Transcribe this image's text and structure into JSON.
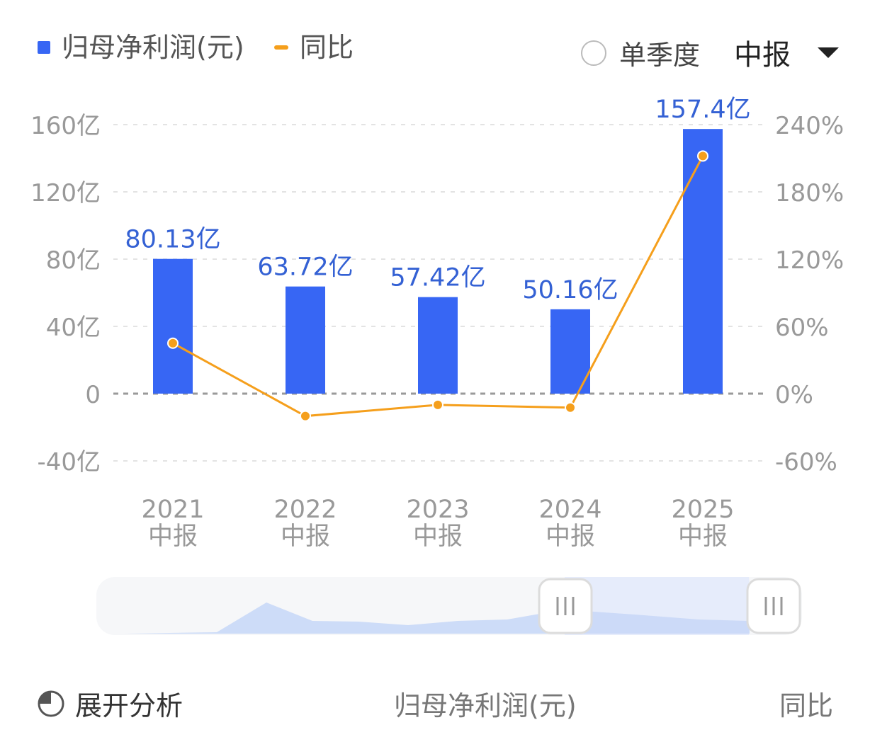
{
  "legend": {
    "profit_label": "归母净利润(元)",
    "yoy_label": "同比"
  },
  "controls": {
    "single_quarter_label": "单季度",
    "period_label": "中报"
  },
  "bottom": {
    "expand_label": "展开分析",
    "tab_profit": "归母净利润(元)",
    "tab_yoy": "同比"
  },
  "colors": {
    "bar": "#3766f4",
    "line": "#f59f1c",
    "bar_label": "#3461d4",
    "axis_text": "#999999",
    "grid": "#e3e3e3"
  },
  "chart_data": {
    "type": "bar",
    "categories": [
      "2021\n中报",
      "2022\n中报",
      "2023\n中报",
      "2024\n中报",
      "2025\n中报"
    ],
    "series": [
      {
        "name": "归母净利润(元)",
        "type": "bar",
        "axis": "left",
        "values": [
          80.13,
          63.72,
          57.42,
          50.16,
          157.4
        ],
        "labels": [
          "80.13亿",
          "63.72亿",
          "57.42亿",
          "50.16亿",
          "157.4亿"
        ]
      },
      {
        "name": "同比",
        "type": "line",
        "axis": "right",
        "values": [
          45,
          -20,
          -10,
          -12.5,
          212
        ]
      }
    ],
    "y_left": {
      "ticks": [
        160,
        120,
        80,
        40,
        0,
        -40
      ],
      "tick_labels": [
        "160亿",
        "120亿",
        "80亿",
        "40亿",
        "0",
        "-40亿"
      ],
      "ylim": [
        -40,
        160
      ]
    },
    "y_right": {
      "ticks": [
        240,
        180,
        120,
        60,
        0,
        -60
      ],
      "tick_labels": [
        "240%",
        "180%",
        "120%",
        "60%",
        "0%",
        "-60%"
      ],
      "ylim": [
        -60,
        240
      ]
    },
    "grid": true,
    "legend": "top-left"
  },
  "navigator": {
    "selected_range": [
      0.6,
      1.0
    ]
  }
}
